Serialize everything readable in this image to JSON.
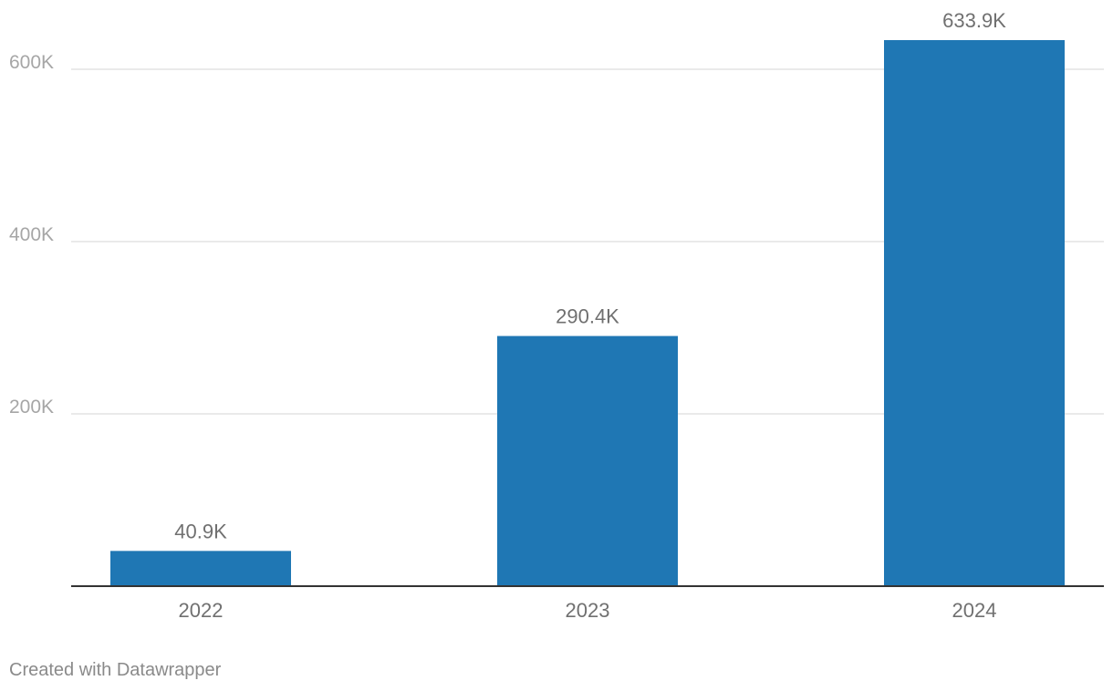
{
  "chart_data": {
    "type": "bar",
    "categories": [
      "2022",
      "2023",
      "2024"
    ],
    "values": [
      40900,
      290400,
      633900
    ],
    "data_labels": [
      "40.9K",
      "290.4K",
      "633.9K"
    ],
    "title": "",
    "xlabel": "",
    "ylabel": "",
    "ylim": [
      0,
      633900
    ],
    "yticks": [
      200000,
      400000,
      600000
    ],
    "ytick_labels": [
      "200K",
      "400K",
      "600K"
    ],
    "grid": true,
    "legend": "none",
    "bar_color": "#1f77b4"
  },
  "footer": {
    "credit": "Created with Datawrapper"
  }
}
